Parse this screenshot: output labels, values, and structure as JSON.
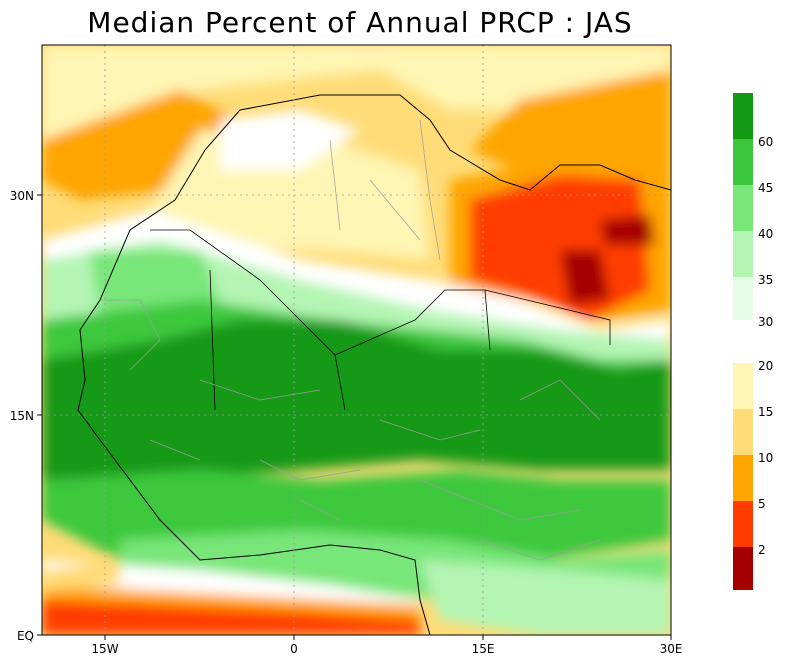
{
  "title": "Median Percent of Annual PRCP   :   JAS",
  "axes": {
    "x_ticks": [
      "15W",
      "0",
      "15E",
      "30E"
    ],
    "y_ticks": [
      "EQ",
      "15N",
      "30N"
    ]
  },
  "legend": {
    "upper_labels": [
      "60",
      "45",
      "40",
      "35",
      "30"
    ],
    "lower_labels": [
      "20",
      "15",
      "10",
      "5",
      "2"
    ],
    "upper_colors": [
      "#139913",
      "#3cc83c",
      "#78e678",
      "#b4f5b4",
      "#e6fce6"
    ],
    "lower_colors": [
      "#fff5b4",
      "#ffdc78",
      "#ffa500",
      "#ff3c00",
      "#a50000"
    ]
  },
  "colors": {
    "background": "#ffffff",
    "border": "#000000",
    "country_lines": "#9c9c9c"
  }
}
